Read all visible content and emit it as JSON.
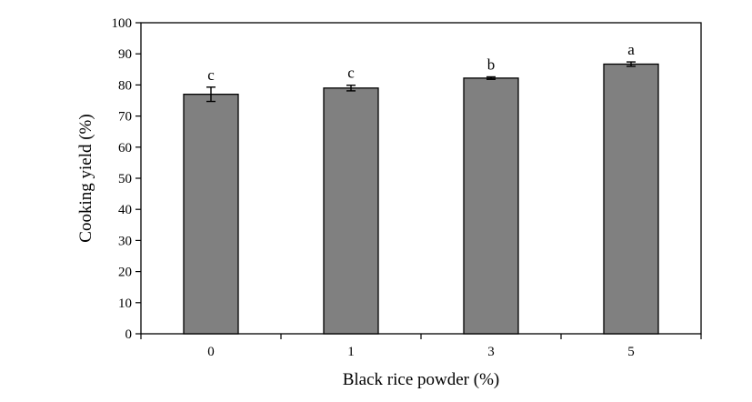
{
  "chart_data": {
    "type": "bar",
    "categories": [
      "0",
      "1",
      "3",
      "5"
    ],
    "values": [
      77.0,
      79.0,
      82.2,
      86.7
    ],
    "errors": [
      2.3,
      0.9,
      0.4,
      0.7
    ],
    "significance_labels": [
      "c",
      "c",
      "b",
      "a"
    ],
    "title": "",
    "xlabel": "Black rice powder (%)",
    "ylabel": "Cooking yield (%)",
    "ylim": [
      0,
      100
    ],
    "yticks": [
      "0",
      "10",
      "20",
      "30",
      "40",
      "50",
      "60",
      "70",
      "80",
      "90",
      "100"
    ],
    "grid": false,
    "legend": "none",
    "bar_color": "#808080"
  }
}
